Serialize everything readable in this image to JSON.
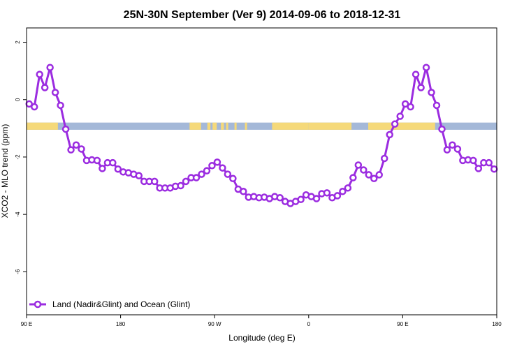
{
  "chart_data": {
    "type": "line",
    "title": "25N-30N September (Ver 9)   2014-09-06 to 2018-12-31",
    "xlabel": "Longitude (deg E)",
    "ylabel": "XCO2 - MLO trend (ppm)",
    "xlim": [
      90,
      540
    ],
    "ylim": [
      -7.5,
      2.5
    ],
    "x_ticks": [
      {
        "value": 90,
        "label": "90 E"
      },
      {
        "value": 180,
        "label": "180"
      },
      {
        "value": 270,
        "label": "90 W"
      },
      {
        "value": 360,
        "label": "0"
      },
      {
        "value": 450,
        "label": "90 E"
      },
      {
        "value": 540,
        "label": "180"
      }
    ],
    "y_ticks": [
      {
        "value": 2,
        "label": "2"
      },
      {
        "value": 0,
        "label": "0"
      },
      {
        "value": -2,
        "label": "-2"
      },
      {
        "value": -4,
        "label": "-4"
      },
      {
        "value": -6,
        "label": "-6"
      }
    ],
    "land_ocean_strip": {
      "y_range": [
        -1.05,
        -0.8
      ],
      "ocean_color": "#a4b8d8",
      "land_color": "#f5d97a",
      "land_segments": [
        [
          90,
          120
        ],
        [
          246,
          257
        ],
        [
          263,
          266
        ],
        [
          268,
          272
        ],
        [
          276,
          278
        ],
        [
          278,
          279
        ],
        [
          281,
          283
        ],
        [
          289,
          291
        ],
        [
          299,
          301
        ],
        [
          325,
          360
        ],
        [
          360,
          401
        ],
        [
          417,
          481
        ]
      ]
    },
    "series": [
      {
        "name": "Land (Nadir&Glint) and Ocean (Glint)",
        "color": "#9b2ce0",
        "x": [
          92.5,
          97.5,
          102.5,
          107.5,
          112.5,
          117.5,
          122.5,
          127.5,
          132.5,
          137.5,
          142.5,
          147.5,
          152.5,
          157.5,
          162.5,
          167.5,
          172.5,
          177.5,
          182.5,
          187.5,
          192.5,
          197.5,
          202.5,
          207.5,
          212.5,
          217.5,
          222.5,
          227.5,
          232.5,
          237.5,
          242.5,
          247.5,
          252.5,
          257.5,
          262.5,
          267.5,
          272.5,
          277.5,
          282.5,
          287.5,
          292.5,
          297.5,
          302.5,
          307.5,
          312.5,
          317.5,
          322.5,
          327.5,
          332.5,
          337.5,
          342.5,
          347.5,
          352.5,
          357.5,
          362.5,
          367.5,
          372.5,
          377.5,
          382.5,
          387.5,
          392.5,
          397.5,
          402.5,
          407.5,
          412.5,
          417.5,
          422.5,
          427.5,
          432.5,
          437.5,
          442.5,
          447.5,
          452.5,
          457.5,
          462.5,
          467.5,
          472.5,
          477.5,
          482.5,
          487.5,
          492.5,
          497.5,
          502.5,
          507.5,
          512.5,
          517.5,
          522.5,
          527.5,
          532.5,
          537.5
        ],
        "values": [
          -0.15,
          -0.25,
          0.88,
          0.42,
          1.12,
          0.25,
          -0.2,
          -1.03,
          -1.75,
          -1.58,
          -1.72,
          -2.12,
          -2.1,
          -2.12,
          -2.4,
          -2.2,
          -2.2,
          -2.42,
          -2.52,
          -2.55,
          -2.6,
          -2.65,
          -2.85,
          -2.85,
          -2.85,
          -3.08,
          -3.08,
          -3.08,
          -3.02,
          -3.0,
          -2.85,
          -2.72,
          -2.72,
          -2.6,
          -2.48,
          -2.3,
          -2.18,
          -2.38,
          -2.6,
          -2.75,
          -3.12,
          -3.2,
          -3.4,
          -3.38,
          -3.42,
          -3.4,
          -3.45,
          -3.38,
          -3.42,
          -3.55,
          -3.62,
          -3.55,
          -3.48,
          -3.32,
          -3.38,
          -3.45,
          -3.28,
          -3.25,
          -3.42,
          -3.35,
          -3.2,
          -3.08,
          -2.72,
          -2.28,
          -2.45,
          -2.62,
          -2.75,
          -2.62,
          -2.05,
          -1.22,
          -0.85,
          -0.58,
          -0.15,
          -0.25,
          0.88,
          0.42,
          1.12,
          0.25,
          -0.2,
          -1.03,
          -1.75,
          -1.58,
          -1.72,
          -2.12,
          -2.1,
          -2.12,
          -2.4,
          -2.2,
          -2.2,
          -2.42
        ]
      }
    ],
    "legend": {
      "position": "bottom-left",
      "label": "Land (Nadir&Glint) and Ocean (Glint)"
    },
    "grid": false
  }
}
